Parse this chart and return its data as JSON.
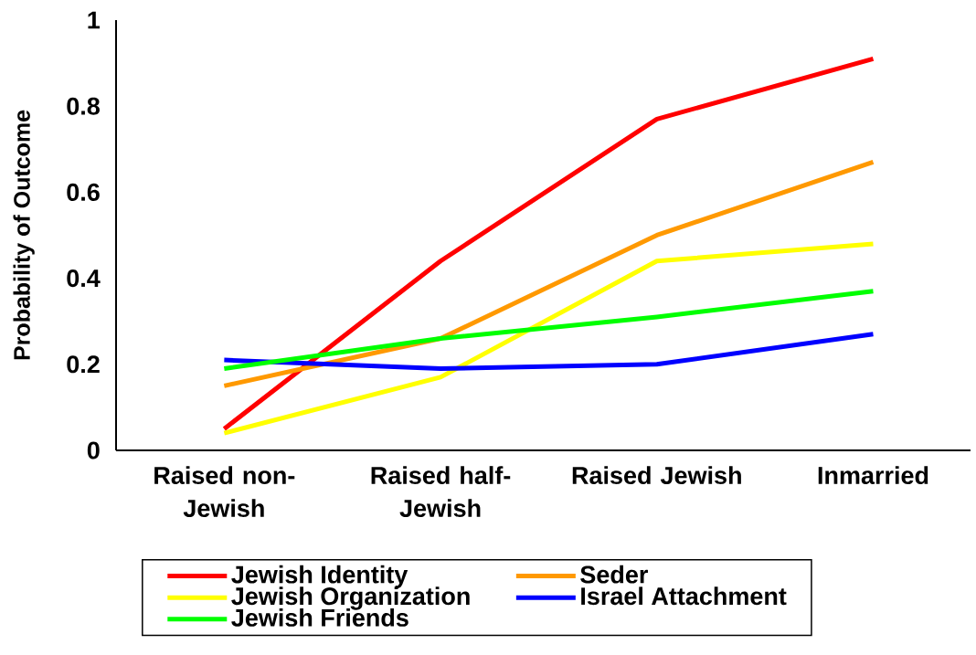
{
  "chart_data": {
    "type": "line",
    "ylabel": "Probability of Outcome",
    "categories": [
      "Raised non-Jewish",
      "Raised half-Jewish",
      "Raised Jewish",
      "Inmarried"
    ],
    "ylim": [
      0,
      1
    ],
    "yticks": [
      0,
      0.2,
      0.4,
      0.6,
      0.8,
      1
    ],
    "legend": "bottom",
    "grid": false,
    "marker": "none",
    "line_style": "solid",
    "series": [
      {
        "name": "Jewish Identity",
        "color": "#ff0000",
        "values": [
          0.05,
          0.44,
          0.77,
          0.91
        ]
      },
      {
        "name": "Seder",
        "color": "#ff9900",
        "values": [
          0.15,
          0.26,
          0.5,
          0.67
        ]
      },
      {
        "name": "Jewish Organization",
        "color": "#ffff00",
        "values": [
          0.04,
          0.17,
          0.44,
          0.48
        ]
      },
      {
        "name": "Israel Attachment",
        "color": "#0000ff",
        "values": [
          0.21,
          0.19,
          0.2,
          0.27
        ]
      },
      {
        "name": "Jewish Friends",
        "color": "#00ff00",
        "values": [
          0.19,
          0.26,
          0.31,
          0.37
        ]
      }
    ]
  }
}
